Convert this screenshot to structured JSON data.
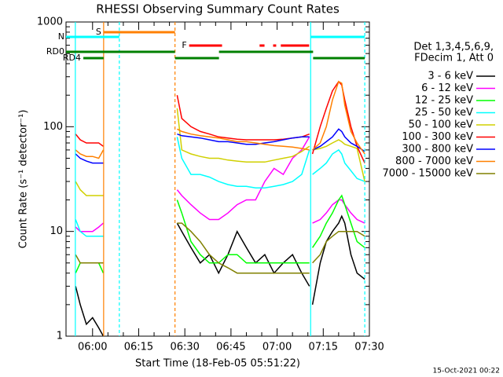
{
  "chart_data": {
    "type": "line",
    "title": "RHESSI Observing Summary Count Rates",
    "xlabel": "Start Time (18-Feb-05 05:51:22)",
    "ylabel": "Count Rate (s⁻¹ detector⁻¹)",
    "footer": "15-Oct-2021 00:22",
    "legend_header": [
      "Det 1,3,4,5,6,9,",
      "FDecim 1, Att 0"
    ],
    "yscale": "log",
    "xlim": [
      51.37,
      150
    ],
    "xticks": [
      {
        "value": 60,
        "label": "06:00"
      },
      {
        "value": 75,
        "label": "06:15"
      },
      {
        "value": 90,
        "label": "06:30"
      },
      {
        "value": 105,
        "label": "06:45"
      },
      {
        "value": 120,
        "label": "07:00"
      },
      {
        "value": 135,
        "label": "07:15"
      },
      {
        "value": 150,
        "label": "07:30"
      }
    ],
    "ylim": [
      1,
      1000
    ],
    "yticks": [
      1,
      10,
      100,
      1000
    ],
    "x": [
      54.5,
      56,
      58,
      60,
      62,
      63.5,
      64,
      87.5,
      89,
      92,
      95,
      98,
      101,
      104,
      107,
      110,
      113,
      116,
      119,
      122,
      125,
      128,
      130.5,
      131,
      131.5,
      134,
      136,
      138,
      140,
      141,
      142,
      144,
      146,
      148.5
    ],
    "series": [
      {
        "name": "3 - 6 keV",
        "color": "#000000",
        "values": [
          3,
          2,
          1.3,
          1.5,
          1.2,
          1,
          null,
          12,
          10,
          7,
          5,
          6,
          4,
          6,
          10,
          7,
          5,
          6,
          4,
          5,
          6,
          4,
          3,
          null,
          2,
          5,
          8,
          10,
          12,
          14,
          12,
          6,
          4,
          3.5
        ]
      },
      {
        "name": "6 - 12 keV",
        "color": "#ff00ff",
        "values": [
          11,
          10,
          10,
          10,
          11,
          12,
          null,
          25,
          22,
          18,
          15,
          13,
          13,
          15,
          18,
          20,
          20,
          30,
          40,
          35,
          50,
          60,
          80,
          null,
          12,
          13,
          15,
          18,
          20,
          20,
          18,
          15,
          13,
          12
        ]
      },
      {
        "name": "12 - 25 keV",
        "color": "#00ff00",
        "values": [
          4,
          5,
          5,
          5,
          5,
          4,
          null,
          20,
          15,
          8,
          6,
          5,
          5,
          6,
          6,
          5,
          5,
          5,
          5,
          5,
          5,
          5,
          5,
          null,
          7,
          9,
          12,
          15,
          20,
          22,
          18,
          12,
          8,
          7
        ]
      },
      {
        "name": "25 - 50 keV",
        "color": "#00ffff",
        "values": [
          13,
          10,
          9,
          9,
          9,
          9,
          null,
          80,
          50,
          35,
          35,
          33,
          30,
          28,
          27,
          27,
          26,
          26,
          27,
          28,
          30,
          35,
          60,
          null,
          35,
          40,
          45,
          55,
          60,
          55,
          45,
          38,
          32,
          30
        ]
      },
      {
        "name": "50 - 100 keV",
        "color": "#d0d000",
        "values": [
          30,
          25,
          22,
          22,
          22,
          22,
          null,
          150,
          60,
          55,
          52,
          50,
          50,
          48,
          47,
          46,
          46,
          46,
          48,
          50,
          52,
          58,
          65,
          null,
          60,
          62,
          65,
          70,
          75,
          72,
          68,
          65,
          62,
          30
        ]
      },
      {
        "name": "100 - 300 keV",
        "color": "#ff0000",
        "values": [
          85,
          75,
          70,
          70,
          70,
          65,
          null,
          200,
          120,
          100,
          90,
          85,
          80,
          78,
          76,
          75,
          75,
          75,
          75,
          76,
          78,
          80,
          85,
          null,
          55,
          100,
          150,
          220,
          270,
          250,
          180,
          100,
          65,
          45
        ]
      },
      {
        "name": "300 - 800 keV",
        "color": "#0000ff",
        "values": [
          55,
          50,
          47,
          45,
          45,
          45,
          null,
          85,
          82,
          80,
          78,
          75,
          72,
          72,
          70,
          68,
          68,
          70,
          72,
          75,
          78,
          80,
          80,
          null,
          60,
          65,
          72,
          80,
          95,
          90,
          80,
          70,
          65,
          58
        ]
      },
      {
        "name": "800 - 7000 keV",
        "color": "#ff8000",
        "values": [
          60,
          55,
          52,
          52,
          50,
          60,
          null,
          95,
          90,
          85,
          82,
          80,
          78,
          75,
          72,
          72,
          70,
          68,
          66,
          65,
          64,
          62,
          60,
          null,
          60,
          70,
          100,
          180,
          270,
          260,
          160,
          90,
          70,
          55
        ]
      },
      {
        "name": "7000 - 15000 keV",
        "color": "#808000",
        "values": [
          6,
          5,
          5,
          5,
          5,
          5,
          null,
          12,
          12,
          10,
          8,
          6,
          5,
          4.5,
          4,
          4,
          4,
          4,
          4,
          4,
          4,
          4,
          4,
          null,
          5,
          6,
          8,
          9,
          10,
          10,
          10,
          10,
          10,
          9
        ]
      }
    ],
    "vlines": [
      {
        "x": 54.4,
        "color": "#00ffff",
        "style": "solid"
      },
      {
        "x": 68.7,
        "color": "#00ffff",
        "style": "dashed"
      },
      {
        "x": 63.6,
        "color": "#ff8000",
        "style": "solid"
      },
      {
        "x": 86.8,
        "color": "#ff8000",
        "style": "dashed"
      },
      {
        "x": 130.9,
        "color": "#00ffff",
        "style": "solid"
      },
      {
        "x": 148.5,
        "color": "#00ffff",
        "style": "dashed"
      }
    ],
    "flags": [
      {
        "label": "S",
        "color": "#ff8000",
        "segments": [
          [
            63.6,
            86.8
          ]
        ]
      },
      {
        "label": "N",
        "color": "#00ffff",
        "segments": [
          [
            51.37,
            68.7
          ],
          [
            130.9,
            148.5
          ]
        ]
      },
      {
        "label": "F",
        "color": "#ff0000",
        "segments": [
          [
            91.4,
            102.1
          ],
          [
            114.3,
            115.9
          ],
          [
            118.7,
            119.7
          ],
          [
            121.2,
            130.4
          ]
        ]
      },
      {
        "label": "RD0",
        "color": "#008000",
        "segments": [
          [
            51.37,
            86.8
          ],
          [
            101.1,
            131.7
          ]
        ]
      },
      {
        "label": "RD4",
        "color": "#008000",
        "segments": [
          [
            57,
            63.6
          ],
          [
            86.8,
            101.1
          ],
          [
            131.7,
            148.5
          ]
        ]
      }
    ]
  }
}
